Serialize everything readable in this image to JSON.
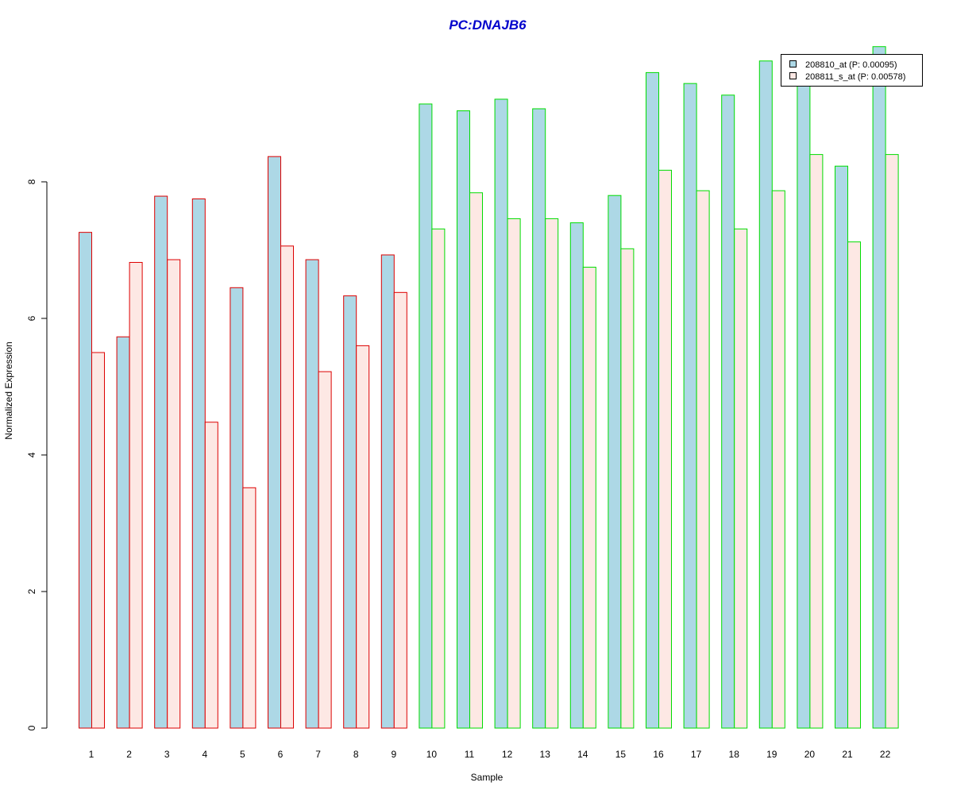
{
  "chart_data": {
    "type": "bar",
    "title": "PC:DNAJB6",
    "xlabel": "Sample",
    "ylabel": "Normalized Expression",
    "categories": [
      "1",
      "2",
      "3",
      "4",
      "5",
      "6",
      "7",
      "8",
      "9",
      "10",
      "11",
      "12",
      "13",
      "14",
      "15",
      "16",
      "17",
      "18",
      "19",
      "20",
      "21",
      "22"
    ],
    "yticks": [
      "0",
      "2",
      "4",
      "6",
      "8"
    ],
    "ylim": [
      0,
      10
    ],
    "grid": false,
    "legend_position": "top-right",
    "series": [
      {
        "name": "208810_at (P: 0.00095)",
        "fill": "#add8e6",
        "values": [
          7.26,
          5.73,
          7.79,
          7.75,
          6.45,
          8.37,
          6.86,
          6.33,
          6.93,
          9.14,
          9.04,
          9.21,
          9.07,
          7.4,
          7.8,
          9.6,
          9.44,
          9.27,
          9.77,
          9.43,
          8.23,
          9.98
        ]
      },
      {
        "name": "208811_s_at (P: 0.00578)",
        "fill": "#fde8e4",
        "values": [
          5.5,
          6.82,
          6.86,
          4.48,
          3.52,
          7.06,
          5.22,
          5.6,
          6.38,
          7.31,
          7.84,
          7.46,
          7.46,
          6.75,
          7.02,
          8.17,
          7.87,
          7.31,
          7.87,
          8.4,
          7.12,
          8.4
        ]
      }
    ],
    "group_outline_colors": [
      "#dd0000",
      "#dd0000",
      "#dd0000",
      "#dd0000",
      "#dd0000",
      "#dd0000",
      "#dd0000",
      "#dd0000",
      "#dd0000",
      "#00dd00",
      "#00dd00",
      "#00dd00",
      "#00dd00",
      "#00dd00",
      "#00dd00",
      "#00dd00",
      "#00dd00",
      "#00dd00",
      "#00dd00",
      "#00dd00",
      "#00dd00",
      "#00dd00"
    ],
    "title_color": "#0000cc"
  }
}
